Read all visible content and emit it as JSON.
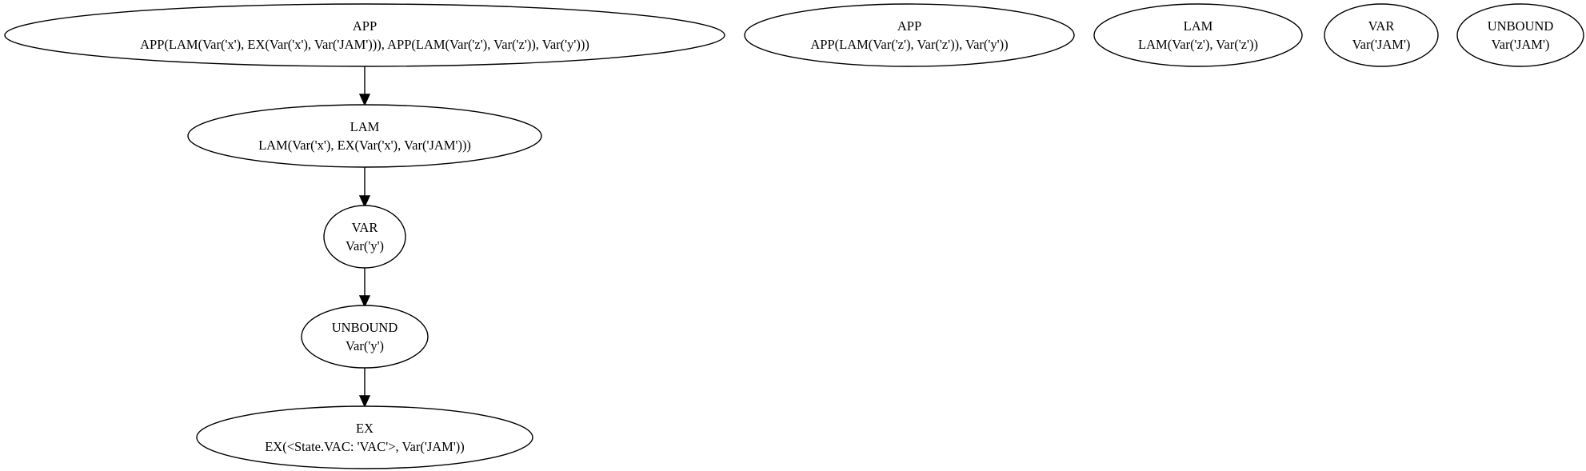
{
  "graph": {
    "nodes": [
      {
        "id": "n1",
        "kind": "APP",
        "term": "APP(LAM(Var('x'), EX(Var('x'), Var('JAM'))), APP(LAM(Var('z'), Var('z')), Var('y')))"
      },
      {
        "id": "n2",
        "kind": "LAM",
        "term": "LAM(Var('x'), EX(Var('x'), Var('JAM')))"
      },
      {
        "id": "n3",
        "kind": "VAR",
        "term": "Var('y')"
      },
      {
        "id": "n4",
        "kind": "UNBOUND",
        "term": "Var('y')"
      },
      {
        "id": "n5",
        "kind": "EX",
        "term": "EX(<State.VAC: 'VAC'>, Var('JAM'))"
      },
      {
        "id": "n6",
        "kind": "APP",
        "term": "APP(LAM(Var('z'), Var('z')), Var('y'))"
      },
      {
        "id": "n7",
        "kind": "LAM",
        "term": "LAM(Var('z'), Var('z'))"
      },
      {
        "id": "n8",
        "kind": "VAR",
        "term": "Var('JAM')"
      },
      {
        "id": "n9",
        "kind": "UNBOUND",
        "term": "Var('JAM')"
      }
    ],
    "edges": [
      {
        "from": "n1",
        "to": "n2"
      },
      {
        "from": "n2",
        "to": "n3"
      },
      {
        "from": "n3",
        "to": "n4"
      },
      {
        "from": "n4",
        "to": "n5"
      }
    ]
  }
}
